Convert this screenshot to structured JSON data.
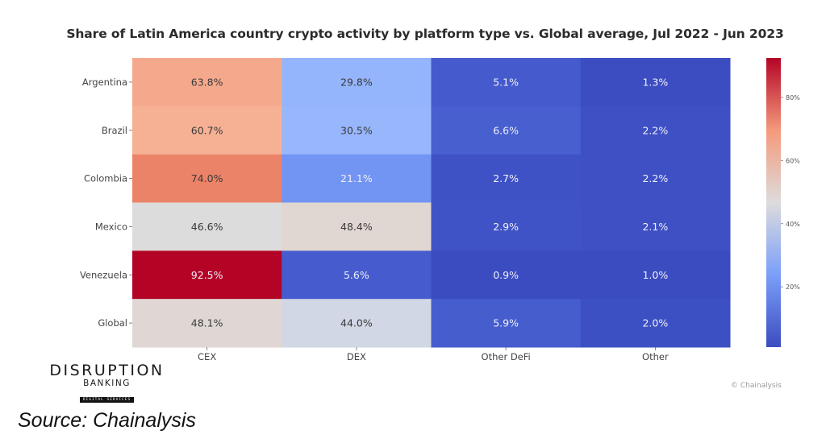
{
  "chart_data": {
    "type": "heatmap",
    "title": "Share of Latin America country crypto activity by platform type vs. Global average, Jul 2022 - Jun 2023",
    "rows": [
      "Argentina",
      "Brazil",
      "Colombia",
      "Mexico",
      "Venezuela",
      "Global"
    ],
    "columns": [
      "CEX",
      "DEX",
      "Other DeFi",
      "Other"
    ],
    "values": [
      [
        63.8,
        29.8,
        5.1,
        1.3
      ],
      [
        60.7,
        30.5,
        6.6,
        2.2
      ],
      [
        74.0,
        21.1,
        2.7,
        2.2
      ],
      [
        46.6,
        48.4,
        2.9,
        2.1
      ],
      [
        92.5,
        5.6,
        0.9,
        1.0
      ],
      [
        48.1,
        44.0,
        5.9,
        2.0
      ]
    ],
    "labels": [
      [
        "63.8%",
        "29.8%",
        "5.1%",
        "1.3%"
      ],
      [
        "60.7%",
        "30.5%",
        "6.6%",
        "2.2%"
      ],
      [
        "74.0%",
        "21.1%",
        "2.7%",
        "2.2%"
      ],
      [
        "46.6%",
        "48.4%",
        "2.9%",
        "2.1%"
      ],
      [
        "92.5%",
        "5.6%",
        "0.9%",
        "1.0%"
      ],
      [
        "48.1%",
        "44.0%",
        "5.9%",
        "2.0%"
      ]
    ],
    "colormap": "coolwarm",
    "color_range": [
      0.9,
      92.5
    ],
    "colorbar": {
      "ticks": [
        20,
        40,
        60,
        80
      ],
      "tick_labels": [
        "20%",
        "40%",
        "60%",
        "80%"
      ],
      "placement": "right"
    }
  },
  "watermark": "© Chainalysis",
  "logo": {
    "main": "DISRUPTION",
    "sub": "BANKING",
    "tag": "DIGITAL SERVICES"
  },
  "source": "Source: Chainalysis"
}
